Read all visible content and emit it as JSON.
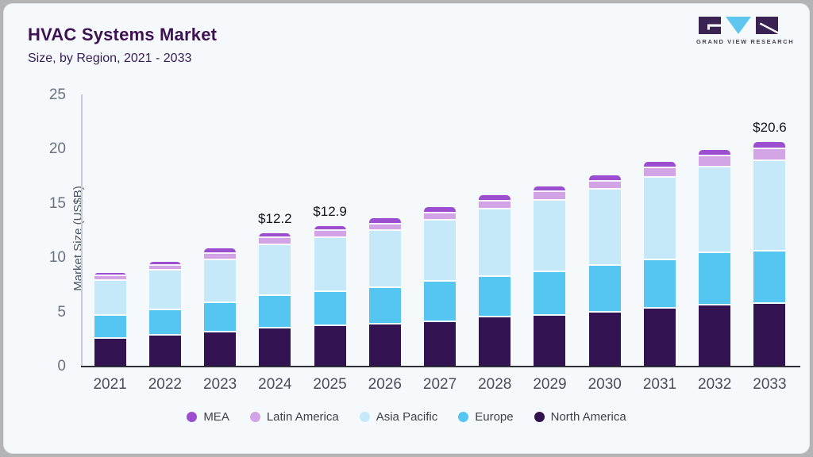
{
  "header": {
    "title": "HVAC Systems Market",
    "subtitle": "Size, by Region, 2021 - 2033"
  },
  "logo": {
    "brand": "GRAND VIEW RESEARCH",
    "purple": "#3a2352",
    "blue": "#5fc6ef"
  },
  "chart_data": {
    "type": "bar",
    "stacked": true,
    "title": "HVAC Systems Market Size, by Region, 2021 - 2033",
    "ylabel": "Market Size (US$B)",
    "ylim": [
      0,
      25
    ],
    "yticks": [
      0,
      5,
      10,
      15,
      20,
      25
    ],
    "grid": false,
    "legend_position": "bottom",
    "categories": [
      "2021",
      "2022",
      "2023",
      "2024",
      "2025",
      "2026",
      "2027",
      "2028",
      "2029",
      "2030",
      "2031",
      "2032",
      "2033"
    ],
    "series": [
      {
        "name": "North America",
        "color": "#321250",
        "values": [
          2.5,
          2.75,
          3.1,
          3.45,
          3.65,
          3.8,
          4.05,
          4.45,
          4.6,
          4.9,
          5.25,
          5.55,
          5.7
        ]
      },
      {
        "name": "Europe",
        "color": "#55c6f1",
        "values": [
          2.1,
          2.35,
          2.7,
          3.0,
          3.15,
          3.35,
          3.7,
          3.75,
          4.0,
          4.35,
          4.45,
          4.8,
          4.85
        ]
      },
      {
        "name": "Asia Pacific",
        "color": "#c5e9f9",
        "values": [
          3.2,
          3.65,
          3.9,
          4.7,
          5.0,
          5.3,
          5.65,
          6.2,
          6.6,
          6.95,
          7.6,
          7.95,
          8.35
        ]
      },
      {
        "name": "Latin America",
        "color": "#d2a4e6",
        "values": [
          0.45,
          0.5,
          0.6,
          0.65,
          0.65,
          0.6,
          0.65,
          0.7,
          0.8,
          0.8,
          0.9,
          1.0,
          1.05
        ]
      },
      {
        "name": "MEA",
        "color": "#9b4fd0",
        "values": [
          0.3,
          0.35,
          0.5,
          0.4,
          0.45,
          0.55,
          0.6,
          0.6,
          0.55,
          0.55,
          0.6,
          0.6,
          0.65
        ]
      }
    ],
    "bar_value_labels": [
      "",
      "",
      "",
      "$12.2",
      "$12.9",
      "",
      "",
      "",
      "",
      "",
      "",
      "",
      "$20.6"
    ],
    "totals": [
      8.55,
      9.6,
      10.8,
      12.2,
      12.9,
      13.6,
      14.65,
      15.7,
      16.55,
      17.55,
      18.8,
      19.9,
      20.6
    ],
    "legend": [
      {
        "label": "MEA",
        "color": "#9b4fd0"
      },
      {
        "label": "Latin America",
        "color": "#d2a4e6"
      },
      {
        "label": "Asia Pacific",
        "color": "#c5e9f9"
      },
      {
        "label": "Europe",
        "color": "#55c6f1"
      },
      {
        "label": "North America",
        "color": "#321250"
      }
    ]
  }
}
